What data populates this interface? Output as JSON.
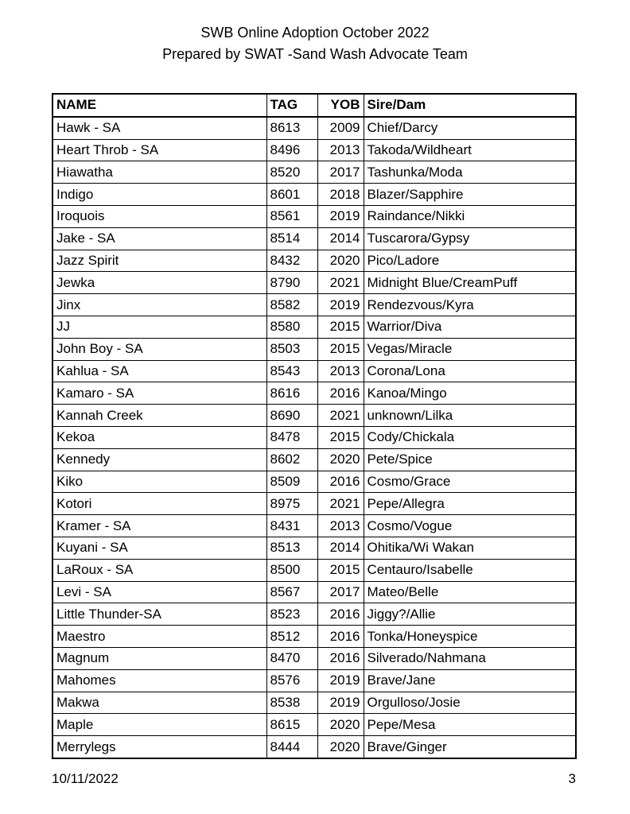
{
  "header": {
    "title": "SWB Online Adoption October 2022",
    "subtitle": "Prepared by SWAT -Sand Wash Advocate Team"
  },
  "table": {
    "columns": [
      "NAME",
      "TAG",
      "YOB",
      "Sire/Dam"
    ],
    "rows": [
      [
        "Hawk - SA",
        "8613",
        "2009",
        "Chief/Darcy"
      ],
      [
        "Heart Throb - SA",
        "8496",
        "2013",
        "Takoda/Wildheart"
      ],
      [
        "Hiawatha",
        "8520",
        "2017",
        "Tashunka/Moda"
      ],
      [
        "Indigo",
        "8601",
        "2018",
        "Blazer/Sapphire"
      ],
      [
        "Iroquois",
        "8561",
        "2019",
        "Raindance/Nikki"
      ],
      [
        "Jake - SA",
        "8514",
        "2014",
        "Tuscarora/Gypsy"
      ],
      [
        "Jazz Spirit",
        "8432",
        "2020",
        "Pico/Ladore"
      ],
      [
        "Jewka",
        "8790",
        "2021",
        "Midnight Blue/CreamPuff"
      ],
      [
        "Jinx",
        "8582",
        "2019",
        "Rendezvous/Kyra"
      ],
      [
        "JJ",
        "8580",
        "2015",
        "Warrior/Diva"
      ],
      [
        "John Boy - SA",
        "8503",
        "2015",
        "Vegas/Miracle"
      ],
      [
        "Kahlua - SA",
        "8543",
        "2013",
        "Corona/Lona"
      ],
      [
        "Kamaro - SA",
        "8616",
        "2016",
        "Kanoa/Mingo"
      ],
      [
        "Kannah Creek",
        "8690",
        "2021",
        "unknown/Lilka"
      ],
      [
        "Kekoa",
        "8478",
        "2015",
        "Cody/Chickala"
      ],
      [
        "Kennedy",
        "8602",
        "2020",
        "Pete/Spice"
      ],
      [
        "Kiko",
        "8509",
        "2016",
        "Cosmo/Grace"
      ],
      [
        "Kotori",
        "8975",
        "2021",
        "Pepe/Allegra"
      ],
      [
        "Kramer - SA",
        "8431",
        "2013",
        "Cosmo/Vogue"
      ],
      [
        "Kuyani - SA",
        "8513",
        "2014",
        "Ohitika/Wi Wakan"
      ],
      [
        "LaRoux - SA",
        "8500",
        "2015",
        "Centauro/Isabelle"
      ],
      [
        "Levi - SA",
        "8567",
        "2017",
        "Mateo/Belle"
      ],
      [
        "Little Thunder-SA",
        "8523",
        "2016",
        "Jiggy?/Allie"
      ],
      [
        "Maestro",
        "8512",
        "2016",
        "Tonka/Honeyspice"
      ],
      [
        "Magnum",
        "8470",
        "2016",
        "Silverado/Nahmana"
      ],
      [
        "Mahomes",
        "8576",
        "2019",
        "Brave/Jane"
      ],
      [
        "Makwa",
        "8538",
        "2019",
        "Orgulloso/Josie"
      ],
      [
        "Maple",
        "8615",
        "2020",
        "Pepe/Mesa"
      ],
      [
        "Merrylegs",
        "8444",
        "2020",
        "Brave/Ginger"
      ]
    ]
  },
  "footer": {
    "date": "10/11/2022",
    "page": "3"
  }
}
